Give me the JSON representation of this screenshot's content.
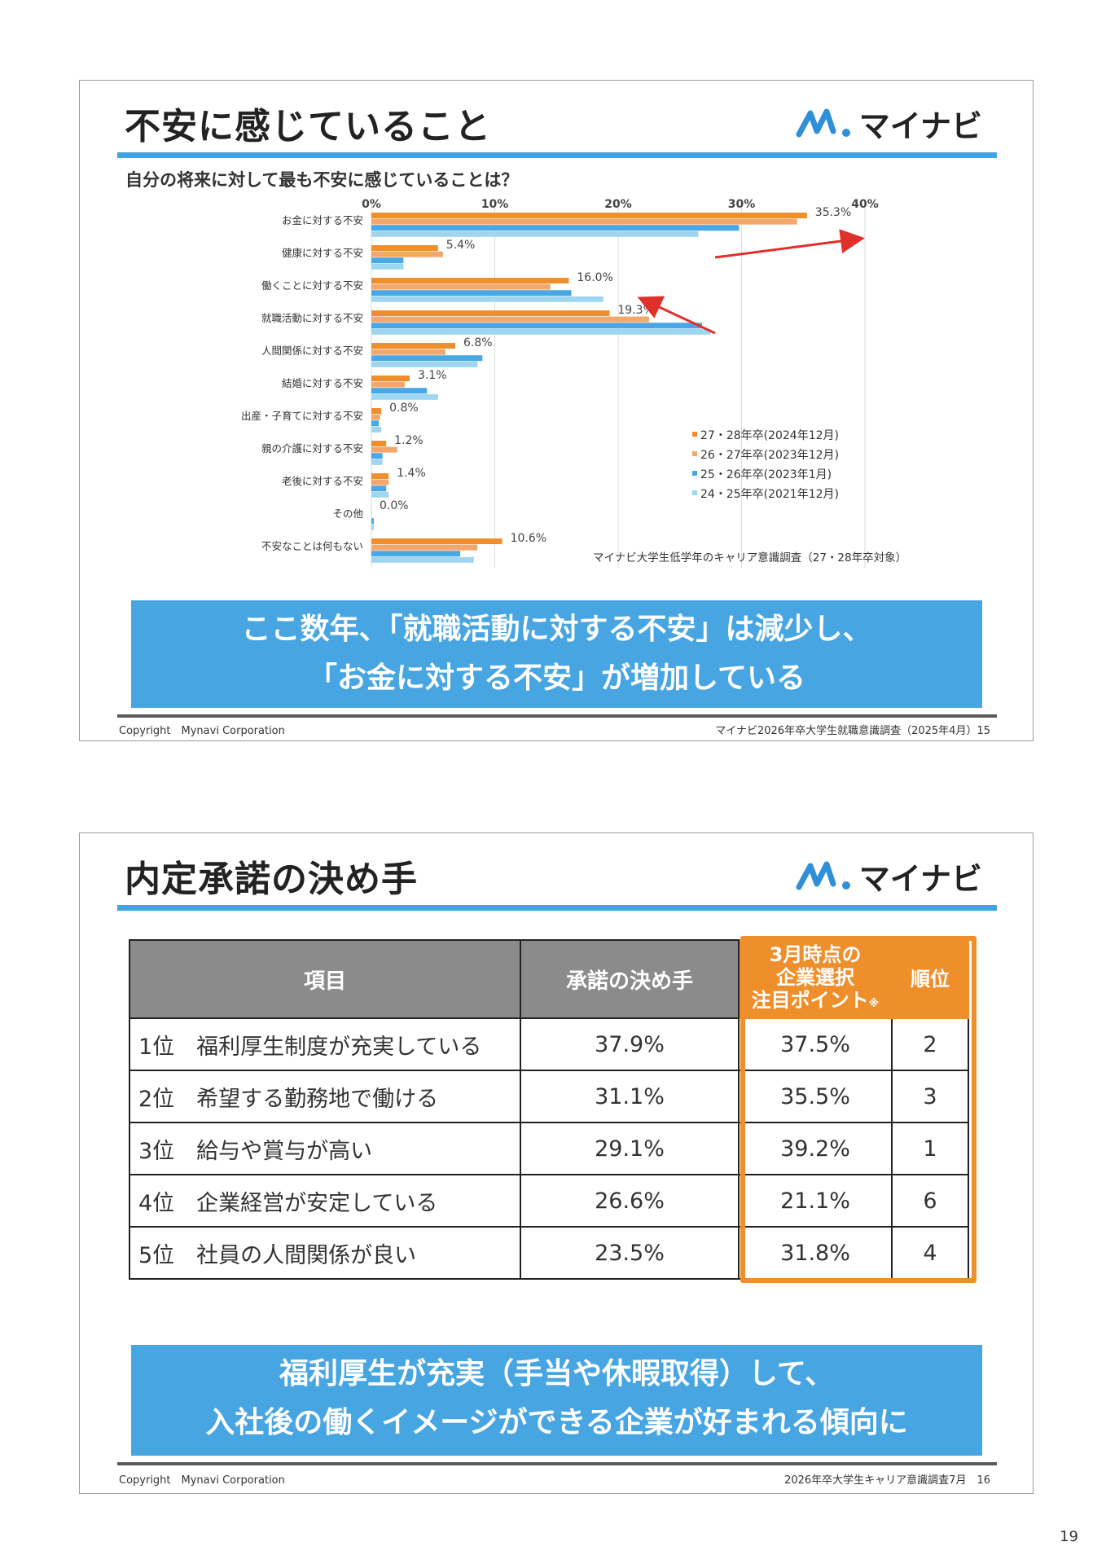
{
  "slide1": {
    "title": "不安に感じていること",
    "logo_text": "マイナビ",
    "question": "自分の将来に対して最も不安に感じていることは？",
    "callout_line1": "ここ数年、「就職活動に対する不安」は減少し、",
    "callout_line2": "「お金に対する不安」が増加している",
    "footer_left": "Copyright　Mynavi Corporation",
    "footer_right": "マイナビ2026年卒大学生就職意識調査（2025年4月）15",
    "colors": {
      "s1": "#ef8f2c",
      "s2": "#f4a76a",
      "s3": "#49a7e6",
      "s4": "#9ed6f0",
      "arrow": "#e0302a"
    }
  },
  "chart_data": {
    "type": "bar",
    "orientation": "horizontal",
    "title": "自分の将来に対して最も不安に感じていることは？",
    "x_ticks": [
      "0%",
      "10%",
      "20%",
      "30%",
      "40%"
    ],
    "xlim": [
      0,
      40
    ],
    "grid": true,
    "legend_position": "bottom-right",
    "categories": [
      "お金に対する不安",
      "健康に対する不安",
      "働くことに対する不安",
      "就職活動に対する不安",
      "人間関係に対する不安",
      "結婚に対する不安",
      "出産・子育てに対する不安",
      "親の介護に対する不安",
      "老後に対する不安",
      "その他",
      "不安なことは何もない"
    ],
    "series": [
      {
        "name": "27・28年卒(2024年12月)",
        "values": [
          35.3,
          5.4,
          16.0,
          19.3,
          6.8,
          3.1,
          0.8,
          1.2,
          1.4,
          0.0,
          10.6
        ]
      },
      {
        "name": "26・27年卒(2023年12月)",
        "values": [
          34.5,
          5.8,
          14.5,
          22.5,
          6.0,
          2.7,
          0.7,
          2.1,
          1.4,
          0.0,
          8.6
        ]
      },
      {
        "name": "25・26年卒(2023年1月)",
        "values": [
          29.8,
          2.6,
          16.2,
          26.8,
          9.0,
          4.5,
          0.6,
          0.9,
          1.2,
          0.2,
          7.2
        ]
      },
      {
        "name": "24・25年卒(2021年12月)",
        "values": [
          26.5,
          2.6,
          18.8,
          27.5,
          8.6,
          5.4,
          0.8,
          0.9,
          1.4,
          0.2,
          8.3
        ]
      }
    ],
    "data_labels": [
      "35.3%",
      "5.4%",
      "16.0%",
      "19.3%",
      "6.8%",
      "3.1%",
      "0.8%",
      "1.2%",
      "1.4%",
      "0.0%",
      "10.6%"
    ],
    "source_note": "マイナビ大学生低学年のキャリア意識調査（27・28年卒対象）"
  },
  "slide2": {
    "title": "内定承諾の決め手",
    "logo_text": "マイナビ",
    "table": {
      "headers": [
        "項目",
        "承諾の決め手",
        "3月時点の",
        "企業選択",
        "注目ポイント",
        "※",
        "順位"
      ],
      "rows": [
        {
          "item": "1位　福利厚生制度が充実している",
          "rate": "37.9%",
          "point": "37.5%",
          "rank": "2"
        },
        {
          "item": "2位　希望する勤務地で働ける",
          "rate": "31.1%",
          "point": "35.5%",
          "rank": "3"
        },
        {
          "item": "3位　給与や賞与が高い",
          "rate": "29.1%",
          "point": "39.2%",
          "rank": "1"
        },
        {
          "item": "4位　企業経営が安定している",
          "rate": "26.6%",
          "point": "21.1%",
          "rank": "6"
        },
        {
          "item": "5位　社員の人間関係が良い",
          "rate": "23.5%",
          "point": "31.8%",
          "rank": "4"
        }
      ]
    },
    "callout_line1": "福利厚生が充実（手当や休暇取得）して、",
    "callout_line2": "入社後の働くイメージができる企業が好まれる傾向に",
    "footer_left": "Copyright　Mynavi Corporation",
    "footer_right": "2026年卒大学生キャリア意識調査7月　16",
    "accent": "#ef8f2c"
  },
  "page_number": "19"
}
